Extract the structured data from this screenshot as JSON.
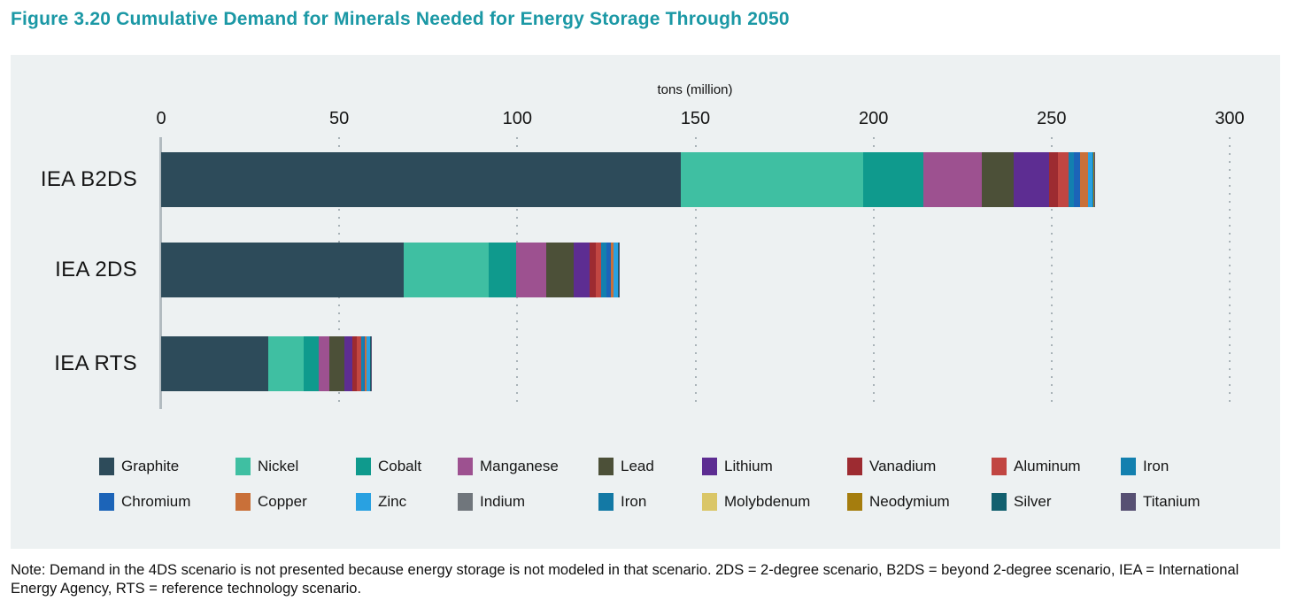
{
  "title": "Figure 3.20 Cumulative Demand for Minerals Needed for Energy Storage Through 2050",
  "title_color": "#1B98A5",
  "panel_background": "#EDF1F2",
  "note": "Note: Demand in the 4DS scenario is not presented because energy storage is not modeled in that scenario. 2DS = 2-degree scenario, B2DS = beyond 2-degree scenario, IEA = International Energy Agency, RTS = reference technology scenario.",
  "chart_data": {
    "type": "bar",
    "orientation": "horizontal",
    "stacked": true,
    "title": "Figure 3.20 Cumulative Demand for Minerals Needed for Energy Storage Through 2050",
    "xlabel": "tons (million)",
    "ylabel": "",
    "x_ticks": [
      0,
      50,
      100,
      150,
      200,
      250,
      300
    ],
    "xlim": [
      0,
      300
    ],
    "grid": "dotted-vertical",
    "legend_position": "bottom",
    "categories": [
      "IEA B2DS",
      "IEA 2DS",
      "IEA RTS"
    ],
    "series": [
      {
        "name": "Graphite",
        "color": "#2D4B5A",
        "values": [
          146,
          68,
          30
        ]
      },
      {
        "name": "Nickel",
        "color": "#3FBFA2",
        "values": [
          51,
          24,
          10
        ]
      },
      {
        "name": "Cobalt",
        "color": "#0F9A8D",
        "values": [
          17,
          7.7,
          4.2
        ]
      },
      {
        "name": "Manganese",
        "color": "#9D5190",
        "values": [
          16.3,
          8.5,
          3.1
        ]
      },
      {
        "name": "Lead",
        "color": "#4C5038",
        "values": [
          9,
          7.7,
          4.2
        ]
      },
      {
        "name": "Lithium",
        "color": "#5D2D92",
        "values": [
          10,
          4.5,
          2.3
        ]
      },
      {
        "name": "Vanadium",
        "color": "#9D2B31",
        "values": [
          2.6,
          1.7,
          1.2
        ]
      },
      {
        "name": "Aluminum",
        "color": "#C14642",
        "values": [
          2.8,
          1.5,
          1.2
        ]
      },
      {
        "name": "Iron",
        "color": "#1380AF",
        "values": [
          1.6,
          1.4,
          0.7
        ]
      },
      {
        "name": "Chromium",
        "color": "#1C64B8",
        "values": [
          1.6,
          1.4,
          0.3
        ]
      },
      {
        "name": "Copper",
        "color": "#C97039",
        "values": [
          2.4,
          0.7,
          0.6
        ]
      },
      {
        "name": "Zinc",
        "color": "#29A1E1",
        "values": [
          1.2,
          1.1,
          0.8
        ]
      },
      {
        "name": "Indium",
        "color": "#70767C",
        "values": [
          0.1,
          0.05,
          0.05
        ]
      },
      {
        "name": "Iron",
        "color": "#1379A5",
        "values": [
          0.1,
          0.05,
          0.05
        ]
      },
      {
        "name": "Molybdenum",
        "color": "#DAC667",
        "values": [
          0.1,
          0.05,
          0.05
        ]
      },
      {
        "name": "Neodymium",
        "color": "#A57D0E",
        "values": [
          0.1,
          0.05,
          0.05
        ]
      },
      {
        "name": "Silver",
        "color": "#12606F",
        "values": [
          0.1,
          0.05,
          0.05
        ]
      },
      {
        "name": "Titanium",
        "color": "#575073",
        "values": [
          0.1,
          0.05,
          0.05
        ]
      }
    ]
  }
}
